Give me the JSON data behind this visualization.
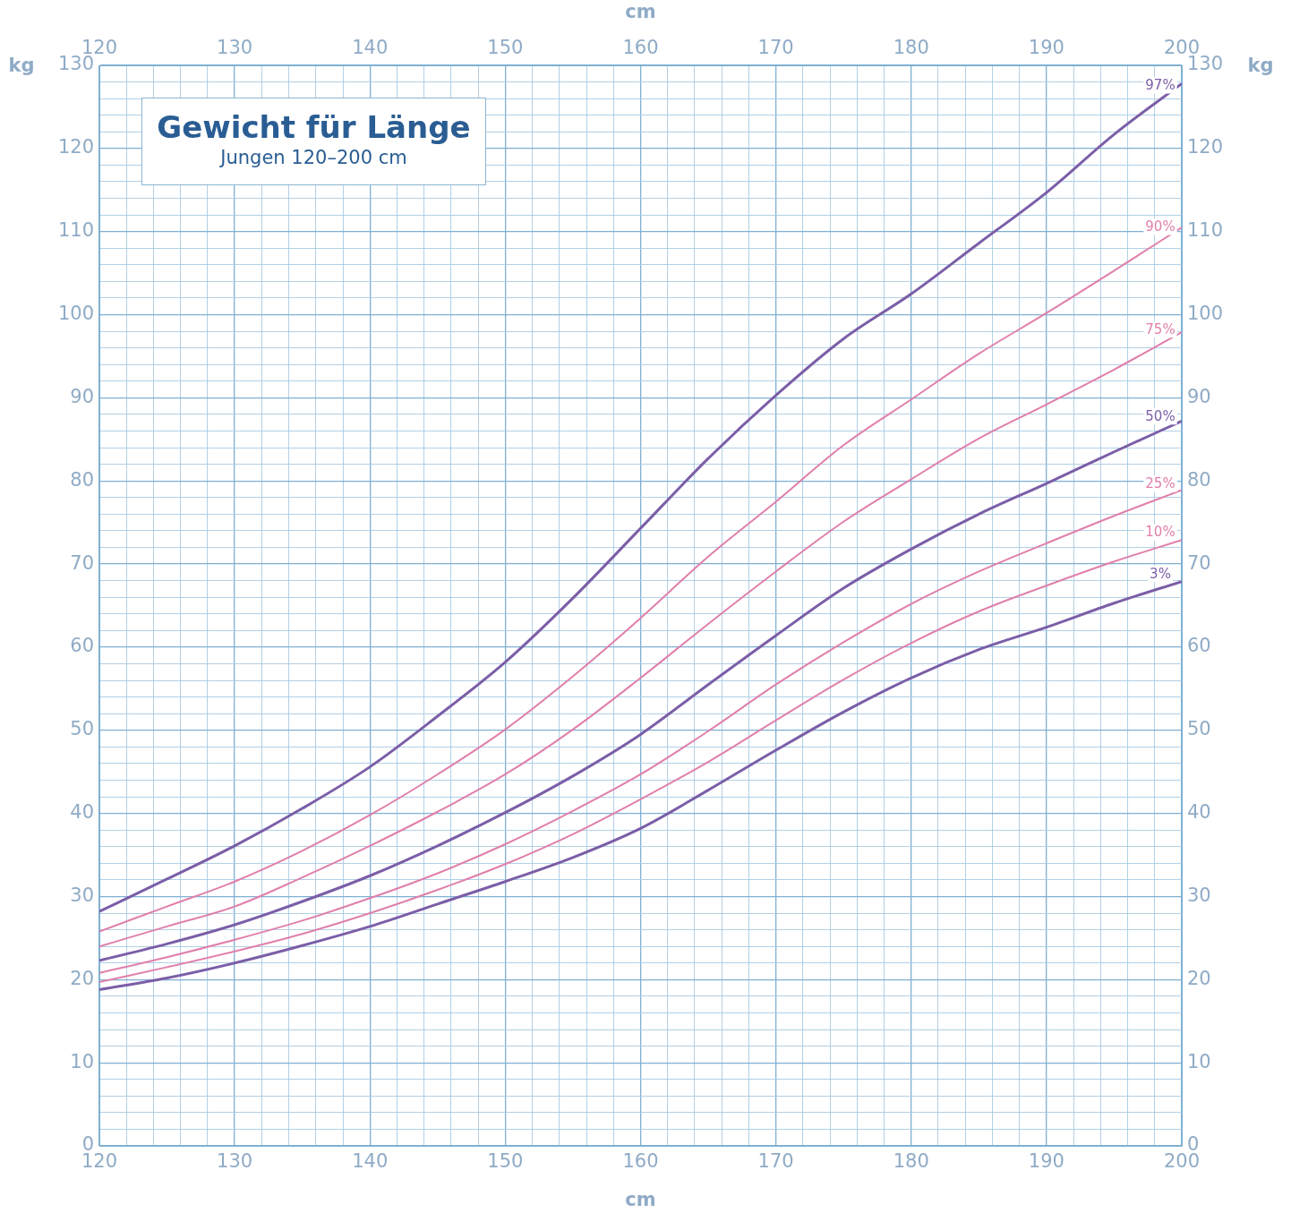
{
  "chart_data": {
    "type": "line",
    "title": "Gewicht für Länge",
    "subtitle": "Jungen 120–200 cm",
    "xlabel": "cm",
    "ylabel": "kg",
    "x2label": "cm",
    "y2label": "kg",
    "x": [
      120,
      125,
      130,
      135,
      140,
      145,
      150,
      155,
      160,
      165,
      170,
      175,
      180,
      185,
      190,
      195,
      200
    ],
    "series": [
      {
        "name": "97%",
        "color": "#7b5ea7",
        "values": [
          28.2,
          32.1,
          36.1,
          40.6,
          45.6,
          51.7,
          58.2,
          65.9,
          74.3,
          82.7,
          90.3,
          97.1,
          102.5,
          108.6,
          114.7,
          121.7,
          127.8
        ]
      },
      {
        "name": "90%",
        "color": "#e07fab",
        "values": [
          25.8,
          28.8,
          31.8,
          35.5,
          39.8,
          44.7,
          50.1,
          56.5,
          63.5,
          70.9,
          77.5,
          84.3,
          89.8,
          95.3,
          100.2,
          105.3,
          110.5
        ]
      },
      {
        "name": "75%",
        "color": "#e07fab",
        "values": [
          24.0,
          26.4,
          28.8,
          32.3,
          36.1,
          40.2,
          44.7,
          50.1,
          56.3,
          62.8,
          69.1,
          75.1,
          80.2,
          85.1,
          89.2,
          93.4,
          97.9
        ]
      },
      {
        "name": "50%",
        "color": "#7b5ea7",
        "values": [
          22.3,
          24.3,
          26.6,
          29.4,
          32.5,
          36.1,
          40.1,
          44.5,
          49.5,
          55.5,
          61.4,
          67.1,
          71.8,
          76.0,
          79.7,
          83.5,
          87.2
        ]
      },
      {
        "name": "25%",
        "color": "#e07fab",
        "values": [
          20.8,
          22.7,
          24.8,
          27.1,
          29.8,
          32.8,
          36.3,
          40.3,
          44.7,
          49.9,
          55.5,
          60.6,
          65.2,
          69.1,
          72.5,
          75.8,
          78.9
        ]
      },
      {
        "name": "10%",
        "color": "#e07fab",
        "values": [
          19.7,
          21.5,
          23.4,
          25.5,
          28.0,
          30.8,
          33.9,
          37.5,
          41.7,
          46.2,
          51.2,
          56.1,
          60.5,
          64.3,
          67.4,
          70.3,
          72.9
        ]
      },
      {
        "name": "3%",
        "color": "#7b5ea7",
        "values": [
          18.8,
          20.2,
          22.0,
          24.1,
          26.4,
          29.1,
          31.8,
          34.7,
          38.2,
          42.8,
          47.6,
          52.2,
          56.3,
          59.7,
          62.4,
          65.3,
          67.9
        ]
      }
    ],
    "xlim": [
      120,
      200
    ],
    "x2lim": [
      120,
      200
    ],
    "ylim": [
      0,
      130
    ],
    "y2lim": [
      0,
      130
    ],
    "xticks": [
      120,
      {
        "value": 122,
        "label": null
      },
      {
        "value": 124,
        "label": null
      },
      {
        "value": 126,
        "label": null
      },
      {
        "value": 128,
        "label": null
      },
      130,
      {
        "value": 132,
        "label": null
      },
      {
        "value": 134,
        "label": null
      },
      {
        "value": 136,
        "label": null
      },
      {
        "value": 138,
        "label": null
      },
      140,
      {
        "value": 142,
        "label": null
      },
      {
        "value": 144,
        "label": null
      },
      {
        "value": 146,
        "label": null
      },
      {
        "value": 148,
        "label": null
      },
      150,
      {
        "value": 152,
        "label": null
      },
      {
        "value": 154,
        "label": null
      },
      {
        "value": 156,
        "label": null
      },
      {
        "value": 158,
        "label": null
      },
      160,
      {
        "value": 162,
        "label": null
      },
      {
        "value": 164,
        "label": null
      },
      {
        "value": 166,
        "label": null
      },
      {
        "value": 168,
        "label": null
      },
      170,
      {
        "value": 172,
        "label": null
      },
      {
        "value": 174,
        "label": null
      },
      {
        "value": 176,
        "label": null
      },
      {
        "value": 178,
        "label": null
      },
      180,
      {
        "value": 182,
        "label": null
      },
      {
        "value": 184,
        "label": null
      },
      {
        "value": 186,
        "label": null
      },
      {
        "value": 188,
        "label": null
      },
      190,
      {
        "value": 192,
        "label": null
      },
      {
        "value": 194,
        "label": null
      },
      {
        "value": 196,
        "label": null
      },
      {
        "value": 198,
        "label": null
      },
      200
    ],
    "x2ticks": [
      120,
      130,
      140,
      150,
      160,
      170,
      180,
      190,
      200
    ],
    "yticks": [
      0,
      {
        "value": 2,
        "label": null
      },
      {
        "value": 4,
        "label": null
      },
      {
        "value": 6,
        "label": null
      },
      {
        "value": 8,
        "label": null
      },
      10,
      {
        "value": 12,
        "label": null
      },
      {
        "value": 14,
        "label": null
      },
      {
        "value": 16,
        "label": null
      },
      {
        "value": 18,
        "label": null
      },
      20,
      {
        "value": 22,
        "label": null
      },
      {
        "value": 24,
        "label": null
      },
      {
        "value": 26,
        "label": null
      },
      {
        "value": 28,
        "label": null
      },
      30,
      {
        "value": 32,
        "label": null
      },
      {
        "value": 34,
        "label": null
      },
      {
        "value": 36,
        "label": null
      },
      {
        "value": 38,
        "label": null
      },
      40,
      {
        "value": 42,
        "label": null
      },
      {
        "value": 44,
        "label": null
      },
      {
        "value": 46,
        "label": null
      },
      {
        "value": 48,
        "label": null
      },
      50,
      {
        "value": 52,
        "label": null
      },
      {
        "value": 54,
        "label": null
      },
      {
        "value": 56,
        "label": null
      },
      {
        "value": 58,
        "label": null
      },
      60,
      {
        "value": 62,
        "label": null
      },
      {
        "value": 64,
        "label": null
      },
      {
        "value": 66,
        "label": null
      },
      {
        "value": 68,
        "label": null
      },
      70,
      {
        "value": 72,
        "label": null
      },
      {
        "value": 74,
        "label": null
      },
      {
        "value": 76,
        "label": null
      },
      {
        "value": 78,
        "label": null
      },
      80,
      {
        "value": 82,
        "label": null
      },
      {
        "value": 84,
        "label": null
      },
      {
        "value": 86,
        "label": null
      },
      {
        "value": 88,
        "label": null
      },
      90,
      {
        "value": 92,
        "label": null
      },
      {
        "value": 94,
        "label": null
      },
      {
        "value": 96,
        "label": null
      },
      {
        "value": 98,
        "label": null
      },
      100,
      {
        "value": 102,
        "label": null
      },
      {
        "value": 104,
        "label": null
      },
      {
        "value": 106,
        "label": null
      },
      {
        "value": 108,
        "label": null
      },
      110,
      {
        "value": 112,
        "label": null
      },
      {
        "value": 114,
        "label": null
      },
      {
        "value": 116,
        "label": null
      },
      {
        "value": 118,
        "label": null
      },
      120,
      {
        "value": 122,
        "label": null
      },
      {
        "value": 124,
        "label": null
      },
      {
        "value": 126,
        "label": null
      },
      {
        "value": 128,
        "label": null
      },
      130
    ],
    "y2ticks": [
      0,
      10,
      20,
      30,
      40,
      50,
      60,
      70,
      80,
      90,
      100,
      110,
      120,
      130
    ],
    "grid": true,
    "legend": false,
    "marker": "none",
    "line_style": "solid"
  }
}
